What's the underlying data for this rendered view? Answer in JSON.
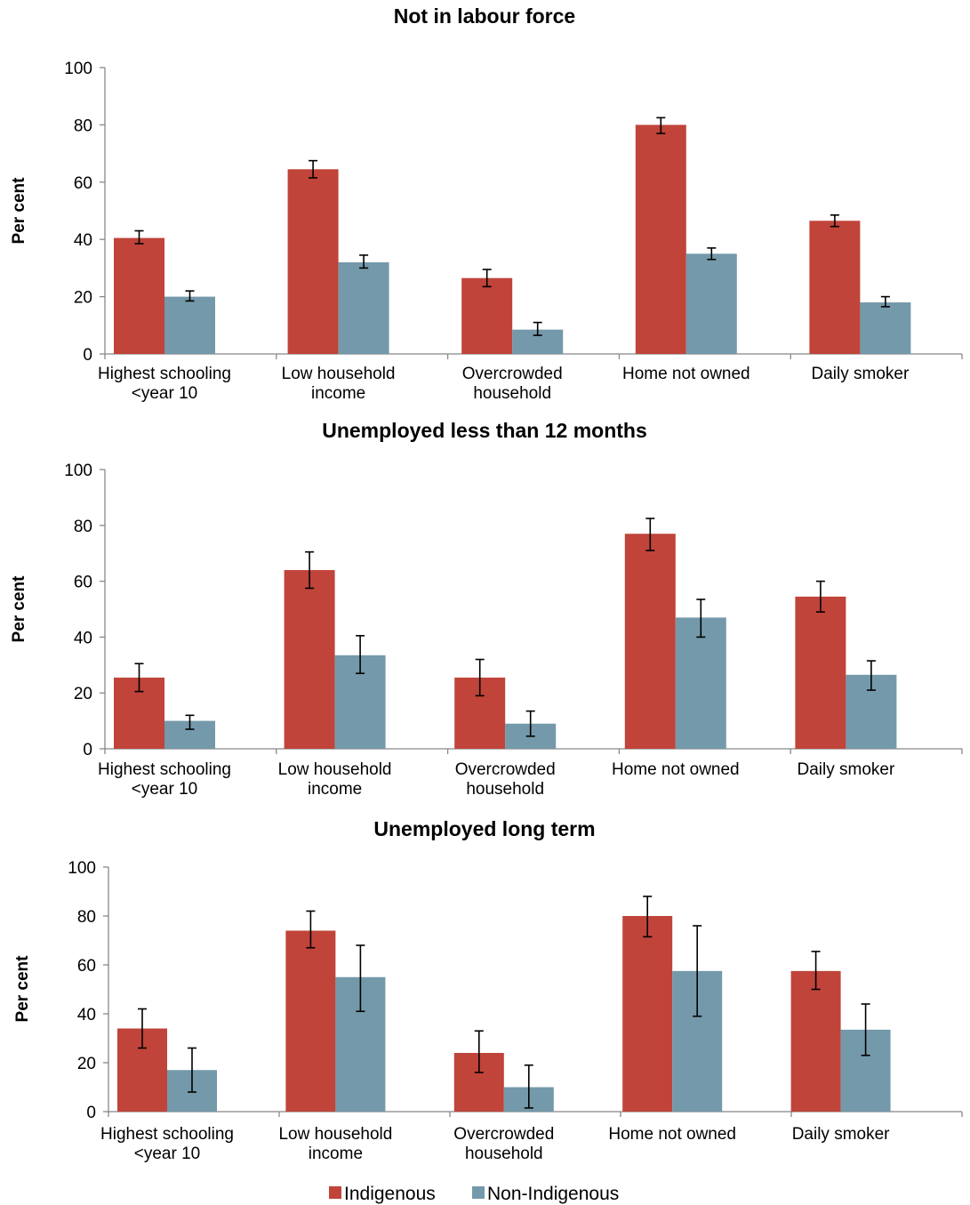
{
  "colors": {
    "indigenous": "#c0443a",
    "non_indigenous": "#7499aa",
    "axis": "#888888"
  },
  "legend": {
    "items": [
      "Indigenous",
      "Non-Indigenous"
    ]
  },
  "chart_data": [
    {
      "type": "bar",
      "title": "Not in labour force",
      "ylabel": "Per cent",
      "ylim": [
        0,
        100
      ],
      "yticks": [
        0,
        20,
        40,
        60,
        80,
        100
      ],
      "categories": [
        [
          "Highest schooling",
          "<year 10"
        ],
        [
          "Low household",
          "income"
        ],
        [
          "Overcrowded",
          "household"
        ],
        [
          "Home not owned"
        ],
        [
          "Daily smoker"
        ]
      ],
      "series": [
        {
          "name": "Indigenous",
          "values": [
            40.5,
            64.5,
            26.5,
            80,
            46.5
          ],
          "err_low": [
            38.5,
            61.5,
            23.5,
            77,
            44.5
          ],
          "err_high": [
            43,
            67.5,
            29.5,
            82.5,
            48.5
          ]
        },
        {
          "name": "Non-Indigenous",
          "values": [
            20,
            32,
            8.5,
            35,
            18
          ],
          "err_low": [
            18.5,
            30,
            6.5,
            33,
            16.5
          ],
          "err_high": [
            22,
            34.5,
            11,
            37,
            20
          ]
        }
      ]
    },
    {
      "type": "bar",
      "title": "Unemployed less than 12 months",
      "ylabel": "Per cent",
      "ylim": [
        0,
        100
      ],
      "yticks": [
        0,
        20,
        40,
        60,
        80,
        100
      ],
      "categories": [
        [
          "Highest schooling",
          "<year 10"
        ],
        [
          "Low household",
          "income"
        ],
        [
          "Overcrowded",
          "household"
        ],
        [
          "Home not owned"
        ],
        [
          "Daily smoker"
        ]
      ],
      "series": [
        {
          "name": "Indigenous",
          "values": [
            25.5,
            64,
            25.5,
            77,
            54.5
          ],
          "err_low": [
            20.5,
            57.5,
            19,
            71,
            49
          ],
          "err_high": [
            30.5,
            70.5,
            32,
            82.5,
            60
          ]
        },
        {
          "name": "Non-Indigenous",
          "values": [
            10,
            33.5,
            9,
            47,
            26.5
          ],
          "err_low": [
            7,
            27,
            4.5,
            40,
            21
          ],
          "err_high": [
            12,
            40.5,
            13.5,
            53.5,
            31.5
          ]
        }
      ]
    },
    {
      "type": "bar",
      "title": "Unemployed long term",
      "ylabel": "Per cent",
      "ylim": [
        0,
        100
      ],
      "yticks": [
        0,
        20,
        40,
        60,
        80,
        100
      ],
      "categories": [
        [
          "Highest schooling",
          "<year 10"
        ],
        [
          "Low household",
          "income"
        ],
        [
          "Overcrowded",
          "household"
        ],
        [
          "Home not owned"
        ],
        [
          "Daily smoker"
        ]
      ],
      "series": [
        {
          "name": "Indigenous",
          "values": [
            34,
            74,
            24,
            80,
            57.5
          ],
          "err_low": [
            26,
            67,
            16,
            71.5,
            50
          ],
          "err_high": [
            42,
            82,
            33,
            88,
            65.5
          ]
        },
        {
          "name": "Non-Indigenous",
          "values": [
            17,
            55,
            10,
            57.5,
            33.5
          ],
          "err_low": [
            8,
            41,
            1.5,
            39,
            23
          ],
          "err_high": [
            26,
            68,
            19,
            76,
            44
          ]
        }
      ]
    }
  ]
}
